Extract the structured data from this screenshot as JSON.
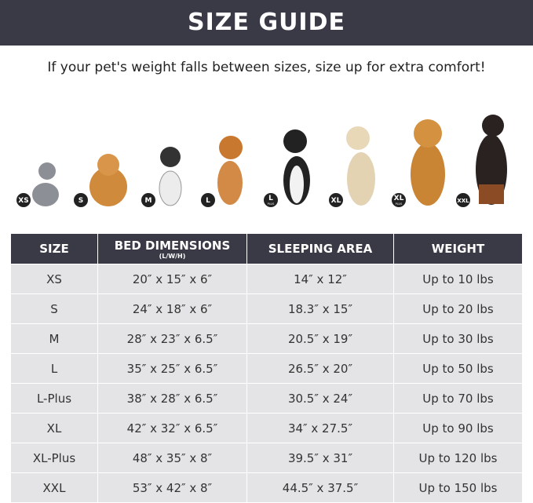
{
  "header": {
    "title": "SIZE GUIDE"
  },
  "subtitle": "If your pet's weight falls between sizes, size up for extra comfort!",
  "pets": [
    {
      "badge": "XS"
    },
    {
      "badge": "S"
    },
    {
      "badge": "M"
    },
    {
      "badge": "L"
    },
    {
      "badge": "L",
      "sub": "PLUS"
    },
    {
      "badge": "XL"
    },
    {
      "badge": "XL",
      "sub": "PLUS"
    },
    {
      "badge": "XXL"
    }
  ],
  "table": {
    "columns": [
      {
        "label": "SIZE"
      },
      {
        "label": "BED DIMENSIONS",
        "sub": "(L/W/H)"
      },
      {
        "label": "SLEEPING AREA"
      },
      {
        "label": "WEIGHT"
      }
    ],
    "rows": [
      [
        "XS",
        "20″ x 15″ x 6″",
        "14″ x 12″",
        "Up to 10 lbs"
      ],
      [
        "S",
        "24″ x 18″ x 6″",
        "18.3″ x 15″",
        "Up to 20 lbs"
      ],
      [
        "M",
        "28″ x 23″ x 6.5″",
        "20.5″ x 19″",
        "Up to 30 lbs"
      ],
      [
        "L",
        "35″ x 25″ x 6.5″",
        "26.5″ x 20″",
        "Up to 50 lbs"
      ],
      [
        "L-Plus",
        "38″ x 28″ x 6.5″",
        "30.5″ x 24″",
        "Up to 70 lbs"
      ],
      [
        "XL",
        "42″ x 32″ x 6.5″",
        "34″ x 27.5″",
        "Up to 90 lbs"
      ],
      [
        "XL-Plus",
        "48″ x 35″ x 8″",
        "39.5″ x 31″",
        "Up to 120 lbs"
      ],
      [
        "XXL",
        "53″ x 42″ x 8″",
        "44.5″ x 37.5″",
        "Up to 150 lbs"
      ]
    ]
  }
}
